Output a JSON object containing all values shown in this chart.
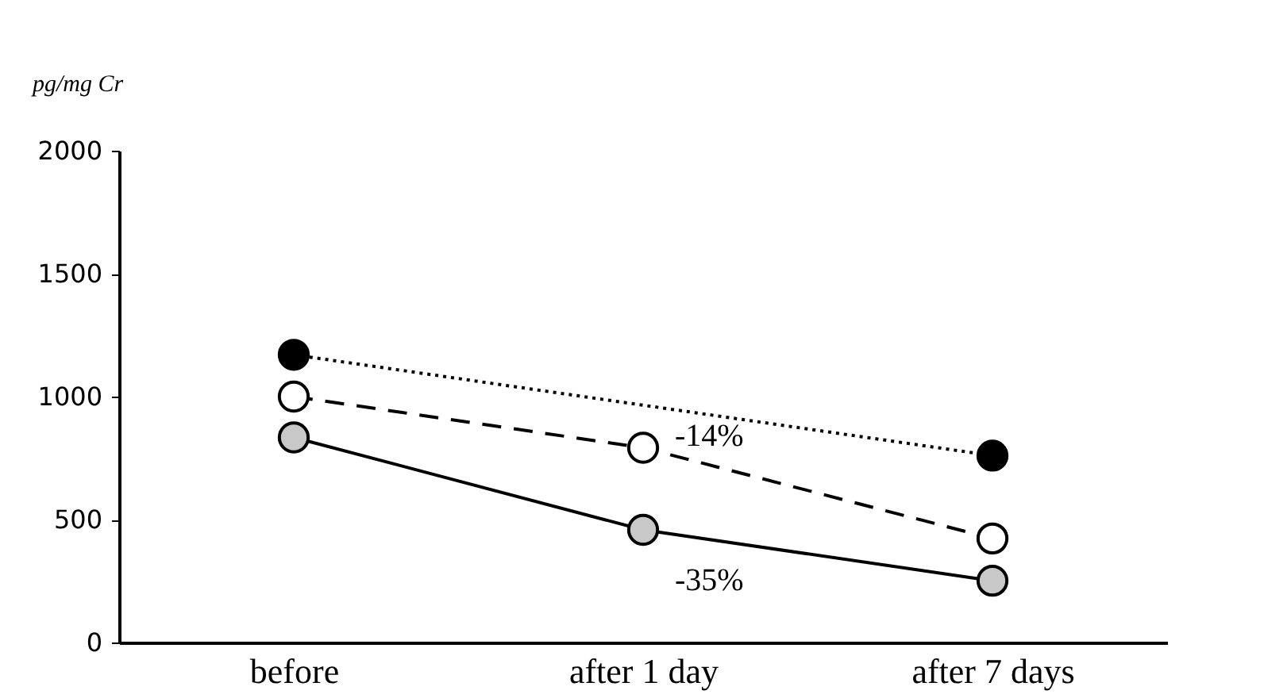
{
  "chart_data": {
    "type": "line",
    "ylabel": "pg/mg Cr",
    "categories": [
      "before",
      "after  1 day",
      "after  7 days"
    ],
    "series": [
      {
        "color": "#000000",
        "line_style": "dotted",
        "values": [
          1170,
          null,
          760
        ]
      },
      {
        "color": "#ffffff",
        "line_style": "dashed",
        "values": [
          1000,
          792,
          423
        ]
      },
      {
        "color": "#c8c8c8",
        "line_style": "solid",
        "values": [
          834,
          458,
          251
        ]
      }
    ],
    "annotations": [
      {
        "text": "-14%",
        "x": "after  1 day",
        "y": 792
      },
      {
        "text": "-35%",
        "x": "after  1 day",
        "y": 458
      }
    ],
    "ylim": [
      0,
      2000
    ],
    "yticks": [
      0,
      500,
      1000,
      1500,
      2000
    ],
    "grid": false,
    "marker": "circle"
  }
}
